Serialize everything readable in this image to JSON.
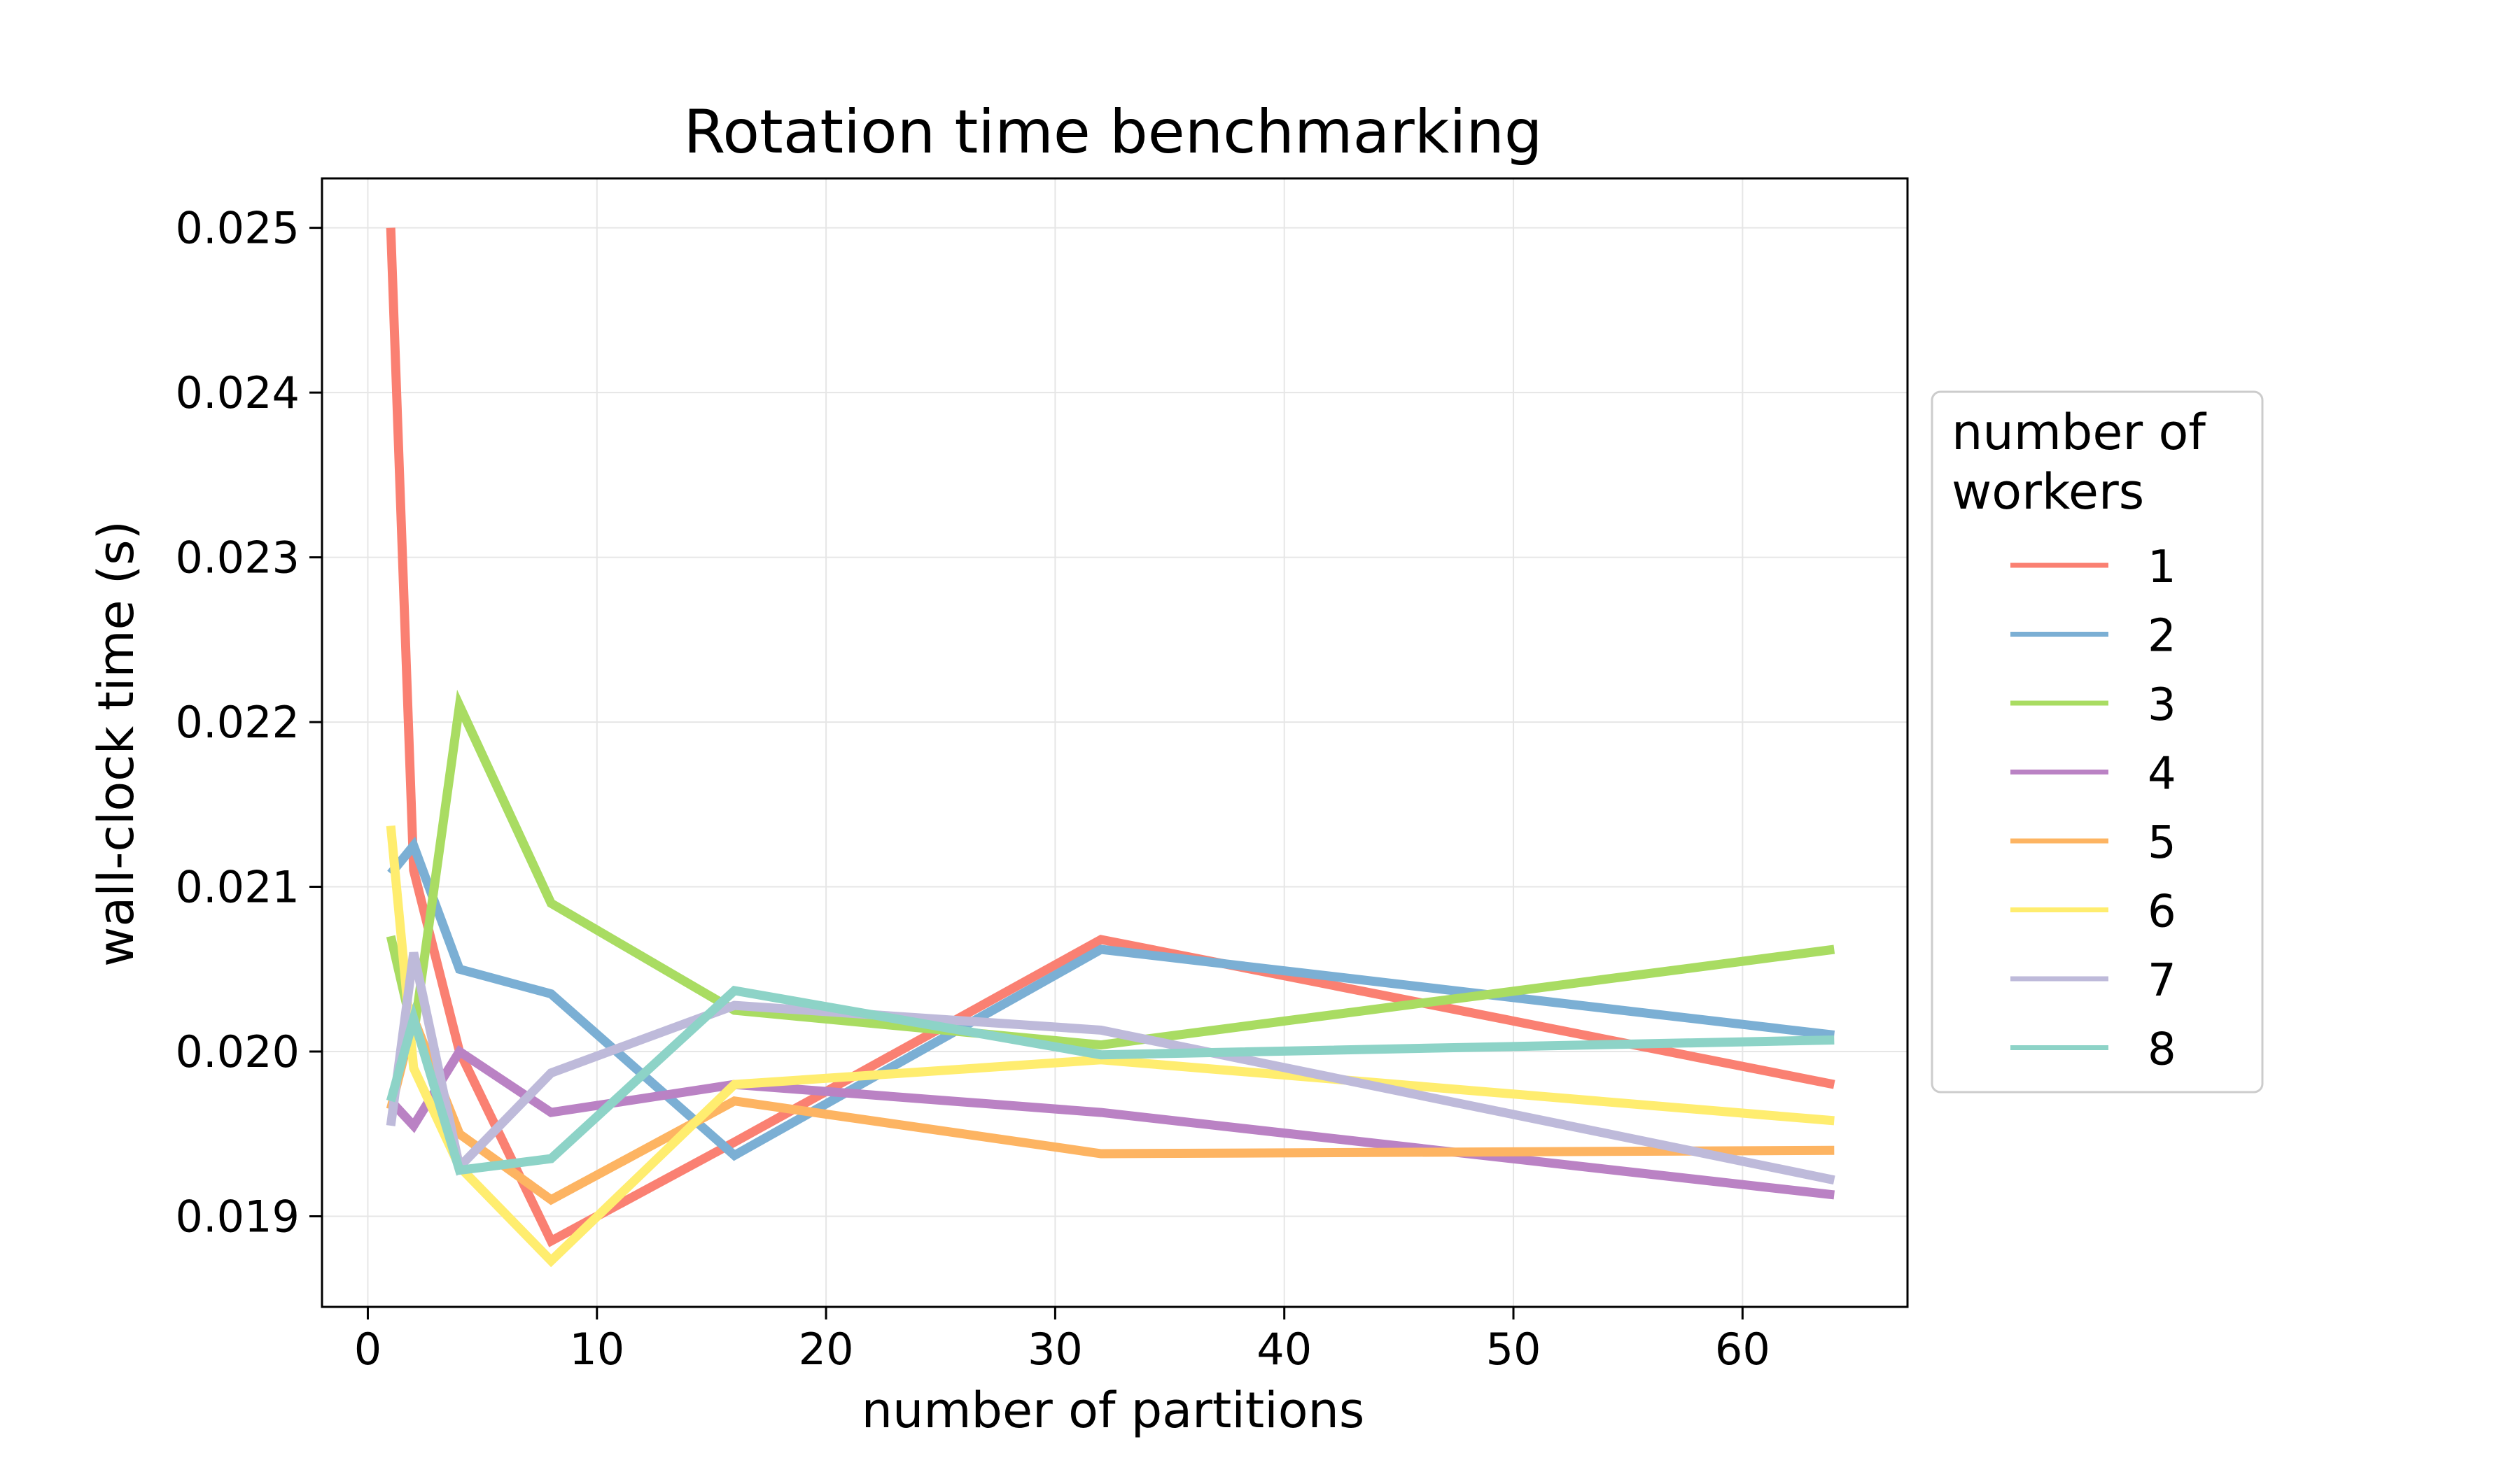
{
  "chart_data": {
    "type": "line",
    "title": "Rotation time benchmarking",
    "xlabel": "number of partitions",
    "ylabel": "wall-clock time (s)",
    "xlim": [
      -2,
      67.2
    ],
    "ylim": [
      0.01845,
      0.0253
    ],
    "xticks": [
      0,
      10,
      20,
      30,
      40,
      50,
      60
    ],
    "xtick_labels": [
      "0",
      "10",
      "20",
      "30",
      "40",
      "50",
      "60"
    ],
    "yticks": [
      0.019,
      0.02,
      0.021,
      0.022,
      0.023,
      0.024,
      0.025
    ],
    "ytick_labels": [
      "0.019",
      "0.020",
      "0.021",
      "0.022",
      "0.023",
      "0.024",
      "0.025"
    ],
    "grid": true,
    "legend": {
      "title_lines": [
        "number of",
        "workers"
      ],
      "placement": "outside right, center"
    },
    "x": [
      1,
      2,
      4,
      8,
      16,
      32,
      64
    ],
    "series": [
      {
        "name": "1",
        "color": "#fa8072",
        "values": [
          0.025,
          0.0211,
          0.02,
          0.01885,
          0.01945,
          0.02068,
          0.0198
        ]
      },
      {
        "name": "2",
        "color": "#7bafd4",
        "values": [
          0.02108,
          0.02125,
          0.0205,
          0.02035,
          0.01937,
          0.02062,
          0.0201
        ]
      },
      {
        "name": "3",
        "color": "#a9dc62",
        "values": [
          0.0207,
          0.0201,
          0.0221,
          0.0209,
          0.02025,
          0.02004,
          0.02062
        ]
      },
      {
        "name": "4",
        "color": "#ba82c4",
        "values": [
          0.0197,
          0.01955,
          0.02,
          0.01963,
          0.0198,
          0.01963,
          0.01913
        ]
      },
      {
        "name": "5",
        "color": "#fdb462",
        "values": [
          0.01965,
          0.0202,
          0.0195,
          0.0191,
          0.0197,
          0.01938,
          0.0194
        ]
      },
      {
        "name": "6",
        "color": "#ffed6f",
        "values": [
          0.02137,
          0.0199,
          0.0193,
          0.01873,
          0.0198,
          0.01995,
          0.01958
        ]
      },
      {
        "name": "7",
        "color": "#bebada",
        "values": [
          0.01955,
          0.0206,
          0.0193,
          0.01987,
          0.02028,
          0.02013,
          0.01922
        ]
      },
      {
        "name": "8",
        "color": "#8dd3c7",
        "values": [
          0.0197,
          0.0202,
          0.01928,
          0.01935,
          0.02037,
          0.01998,
          0.02007
        ]
      }
    ]
  }
}
